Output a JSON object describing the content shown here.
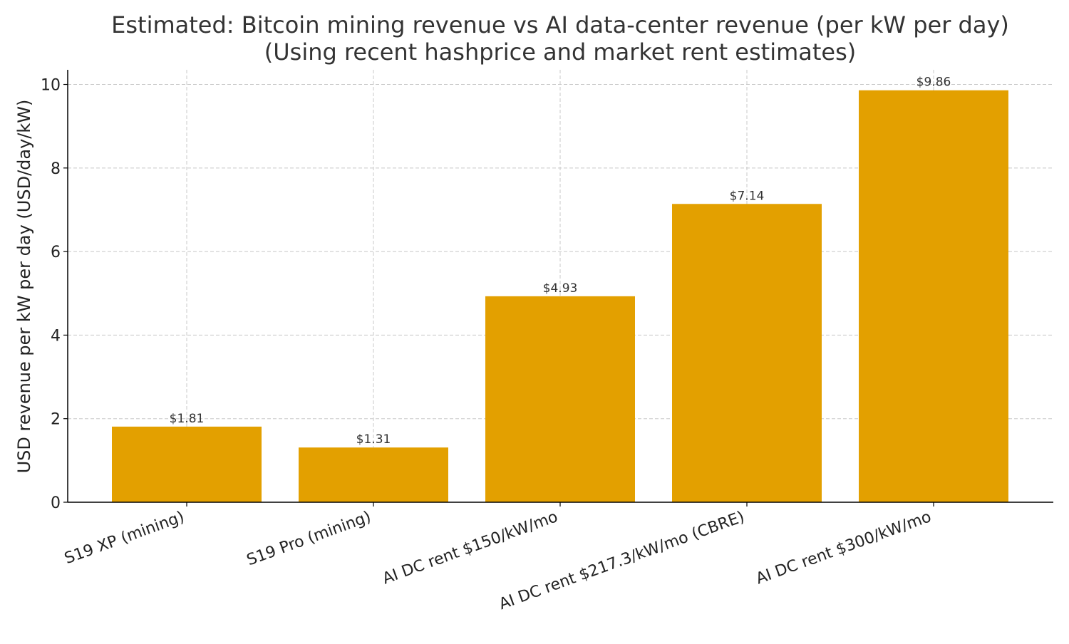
{
  "chart_data": {
    "type": "bar",
    "title": "Estimated: Bitcoin mining revenue vs AI data-center revenue (per kW per day)",
    "subtitle": "(Using recent hashprice and market rent estimates)",
    "xlabel": "",
    "ylabel": "USD revenue per kW per day (USD/day/kW)",
    "categories": [
      "S19 XP (mining)",
      "S19 Pro (mining)",
      "AI DC rent $150/kW/mo",
      "AI DC rent $217.3/kW/mo (CBRE)",
      "AI DC rent $300/kW/mo"
    ],
    "values": [
      1.81,
      1.31,
      4.93,
      7.14,
      9.86
    ],
    "data_labels": [
      "$1.81",
      "$1.31",
      "$4.93",
      "$7.14",
      "$9.86"
    ],
    "ylim": [
      0,
      10.35
    ],
    "yticks": [
      0,
      2,
      4,
      6,
      8,
      10
    ],
    "bar_color": "#E3A000",
    "grid": true
  }
}
